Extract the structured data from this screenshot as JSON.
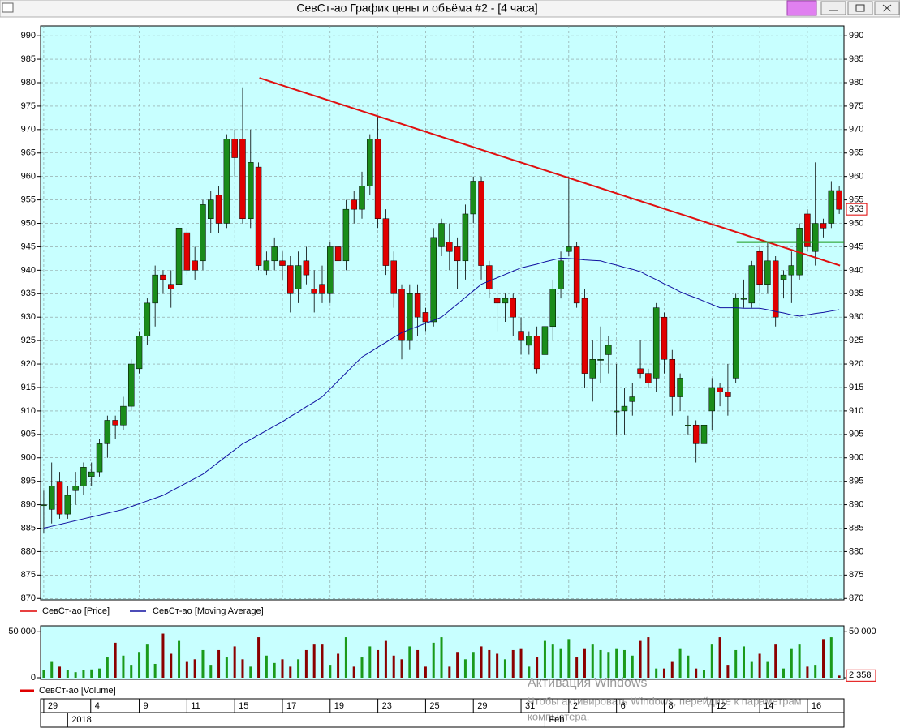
{
  "window": {
    "title": "СевСт-ао График цены и объёма #2 - [4 часа]"
  },
  "watermark": {
    "title": "Активация Windows",
    "lines": [
      "Чтобы активировать Windows, перейдите к параметрам",
      "компьютера."
    ]
  },
  "chart_data": [
    {
      "type": "candlestick",
      "series": [
        {
          "name": "СевСт-ао [Price]",
          "color": "#e00000",
          "up_color": "#1a8c1a",
          "down_color": "#e00000",
          "open": [
            890,
            889,
            895,
            888,
            893,
            894,
            896,
            897,
            903,
            908,
            907,
            911,
            919,
            926,
            933,
            939,
            937,
            937,
            948,
            942,
            942,
            951,
            956,
            950,
            968,
            968,
            951,
            962,
            940,
            942,
            942,
            941,
            936,
            942,
            936,
            937,
            935,
            945,
            942,
            955,
            953,
            958,
            968,
            951,
            942,
            936,
            925,
            935,
            931,
            929,
            945,
            946,
            945,
            942,
            952,
            959,
            941,
            934,
            933,
            934,
            927,
            924,
            926,
            922,
            928,
            936,
            944,
            945,
            934,
            917,
            921,
            922,
            910,
            910,
            912,
            919,
            918,
            917,
            930,
            921,
            913,
            907,
            907,
            903,
            910,
            915,
            914,
            917,
            934,
            933,
            944,
            937,
            942,
            938,
            939,
            939,
            952,
            944,
            950,
            950,
            957
          ],
          "high": [
            893,
            899,
            897,
            894,
            897,
            899,
            899,
            904,
            909,
            909,
            913,
            921,
            927,
            934,
            941,
            940,
            940,
            950,
            949,
            945,
            955,
            957,
            958,
            969,
            970,
            979,
            970,
            963,
            944,
            947,
            944,
            943,
            944,
            945,
            940,
            941,
            946,
            950,
            955,
            957,
            961,
            969,
            973,
            953,
            944,
            937,
            937,
            937,
            932,
            949,
            951,
            950,
            947,
            954,
            960,
            960,
            942,
            936,
            935,
            935,
            930,
            927,
            928,
            931,
            938,
            944,
            960,
            946,
            936,
            925,
            928,
            926,
            920,
            915,
            916,
            925,
            919,
            933,
            931,
            923,
            918,
            909,
            908,
            910,
            917,
            916,
            920,
            935,
            938,
            942,
            945,
            946,
            943,
            940,
            944,
            950,
            953,
            963,
            951,
            959,
            958
          ],
          "low": [
            884,
            886,
            887,
            887,
            890,
            892,
            894,
            896,
            900,
            904,
            906,
            910,
            918,
            924,
            928,
            935,
            932,
            936,
            939,
            938,
            940,
            948,
            948,
            949,
            960,
            950,
            949,
            940,
            939,
            940,
            938,
            931,
            933,
            937,
            931,
            933,
            933,
            940,
            940,
            950,
            951,
            956,
            949,
            939,
            932,
            921,
            923,
            926,
            927,
            928,
            943,
            940,
            936,
            938,
            950,
            938,
            934,
            927,
            929,
            926,
            922,
            922,
            918,
            917,
            925,
            934,
            943,
            932,
            915,
            912,
            916,
            918,
            905,
            905,
            909,
            917,
            915,
            914,
            918,
            909,
            910,
            905,
            899,
            902,
            906,
            911,
            909,
            916,
            932,
            932,
            935,
            935,
            928,
            934,
            933,
            938,
            944,
            941,
            947,
            949,
            952
          ],
          "close": [
            890,
            894,
            888,
            892,
            894,
            898,
            897,
            903,
            908,
            907,
            911,
            920,
            926,
            933,
            939,
            938,
            936,
            949,
            940,
            940,
            954,
            955,
            950,
            968,
            964,
            951,
            963,
            941,
            942,
            945,
            941,
            935,
            941,
            939,
            935,
            935,
            945,
            942,
            953,
            953,
            958,
            968,
            951,
            941,
            935,
            925,
            935,
            930,
            929,
            947,
            950,
            944,
            942,
            952,
            959,
            941,
            936,
            933,
            934,
            930,
            925,
            926,
            919,
            928,
            936,
            942,
            945,
            933,
            918,
            921,
            921,
            924,
            910,
            911,
            913,
            918,
            916,
            932,
            921,
            913,
            917,
            907,
            903,
            907,
            915,
            914,
            913,
            934,
            934,
            941,
            937,
            942,
            930,
            939,
            941,
            949,
            945,
            950,
            949,
            957,
            953
          ]
        },
        {
          "name": "СевСт-ао [Moving Average]",
          "color": "#1010a0",
          "values": [
            885,
            885.4,
            885.8,
            886.2,
            886.6,
            887,
            887.4,
            887.8,
            888.2,
            888.6,
            889,
            889.6,
            890.2,
            890.8,
            891.4,
            892,
            892.9,
            893.8,
            894.7,
            895.6,
            896.5,
            897.8,
            899.1,
            900.4,
            901.7,
            903,
            903.9,
            904.9,
            905.8,
            906.8,
            907.7,
            908.8,
            909.8,
            910.9,
            911.9,
            913,
            914.7,
            916.4,
            918.1,
            919.8,
            921.5,
            922.5,
            923.6,
            924.6,
            925.7,
            926.7,
            927.4,
            928,
            928.7,
            929.3,
            930,
            931.4,
            932.8,
            934.2,
            935.6,
            937,
            937.7,
            938.4,
            939.1,
            939.8,
            940.5,
            940.9,
            941.3,
            941.8,
            942.2,
            942.6,
            942.5,
            942.4,
            942.2,
            942.1,
            942,
            941.5,
            941.1,
            940.6,
            940.2,
            939.7,
            938.8,
            938,
            937.1,
            936.3,
            935.4,
            934.7,
            934.1,
            933.4,
            932.7,
            932,
            932,
            932,
            931.9,
            931.9,
            931.9,
            931.6,
            931.2,
            930.9,
            930.5,
            930.2,
            930.5,
            930.8,
            931,
            931.3,
            931.6
          ]
        }
      ],
      "annotations": [
        {
          "type": "trendline",
          "color": "#e01010",
          "x": [
            27.1,
            100.1
          ],
          "y": [
            981,
            941
          ]
        },
        {
          "type": "hline",
          "color": "#1a9a1a",
          "x": [
            87.1,
            100.6
          ],
          "y": [
            946,
            946
          ]
        }
      ],
      "xlim": [
        -0.4,
        100.6
      ],
      "ylim": [
        869.7,
        992.1
      ],
      "yticks": [
        870,
        875,
        880,
        885,
        890,
        895,
        900,
        905,
        910,
        915,
        920,
        925,
        930,
        935,
        940,
        945,
        950,
        955,
        960,
        965,
        970,
        975,
        980,
        985,
        990
      ],
      "xticks": [
        {
          "value": 0,
          "label": "29"
        },
        {
          "value": 5.9,
          "label": "4"
        },
        {
          "value": 12,
          "label": "9"
        },
        {
          "value": 18,
          "label": "11"
        },
        {
          "value": 24,
          "label": "15"
        },
        {
          "value": 30,
          "label": "17"
        },
        {
          "value": 36,
          "label": "19"
        },
        {
          "value": 42,
          "label": "23"
        },
        {
          "value": 48,
          "label": "25"
        },
        {
          "value": 54,
          "label": "29"
        },
        {
          "value": 60,
          "label": "31"
        },
        {
          "value": 66,
          "label": "2"
        },
        {
          "value": 72,
          "label": "6"
        },
        {
          "value": 78,
          "label": "8"
        },
        {
          "value": 84,
          "label": "12"
        },
        {
          "value": 90,
          "label": "14"
        },
        {
          "value": 96,
          "label": "16"
        }
      ],
      "month_ticks": [
        {
          "value": 3,
          "label": "2018"
        },
        {
          "value": 63,
          "label": "Feb"
        }
      ],
      "grid": true,
      "background": "#c8ffff"
    },
    {
      "type": "bar",
      "series": [
        {
          "name": "СевСт-ао [Volume]",
          "color": "#e00000",
          "up_color": "#1a9a1a",
          "down_color": "#8b0000",
          "values": [
            8000,
            18000,
            12000,
            8000,
            6000,
            8000,
            9000,
            10000,
            22000,
            38000,
            24000,
            14000,
            28000,
            36000,
            15000,
            48000,
            26000,
            40000,
            18000,
            20000,
            30000,
            14000,
            30000,
            22000,
            34000,
            20000,
            12000,
            44000,
            24000,
            16000,
            20000,
            12000,
            20000,
            30000,
            36000,
            36000,
            14000,
            26000,
            44000,
            12000,
            22000,
            34000,
            30000,
            40000,
            24000,
            20000,
            34000,
            30000,
            12000,
            38000,
            44000,
            12000,
            28000,
            20000,
            28000,
            34000,
            30000,
            26000,
            20000,
            30000,
            32000,
            12000,
            22000,
            40000,
            36000,
            32000,
            42000,
            22000,
            32000,
            36000,
            30000,
            28000,
            32000,
            30000,
            24000,
            40000,
            44000,
            10000,
            10000,
            18000,
            32000,
            24000,
            10000,
            8000,
            36000,
            44000,
            14000,
            30000,
            34000,
            18000,
            26000,
            18000,
            36000,
            10000,
            32000,
            36000,
            12000,
            14000,
            42000,
            44000,
            2358
          ],
          "value_labels": [
            null,
            null,
            null,
            null,
            null,
            null,
            null,
            null,
            null,
            null,
            null,
            null,
            null,
            null,
            null,
            null,
            null,
            null,
            null,
            null,
            null,
            null,
            null,
            null,
            null,
            null,
            null,
            null,
            null,
            null,
            null,
            null,
            null,
            null,
            null,
            null,
            null,
            null,
            null,
            null,
            null,
            null,
            null,
            null,
            null,
            null,
            null,
            null,
            null,
            null,
            null,
            null,
            null,
            null,
            null,
            null,
            null,
            null,
            null,
            null,
            null,
            null,
            null,
            null,
            null,
            null,
            null,
            null,
            null,
            null,
            null,
            null,
            null,
            null,
            null,
            null,
            null,
            null,
            null,
            null,
            null,
            null,
            null,
            null,
            null,
            null,
            null,
            null,
            null,
            null,
            null,
            null,
            null,
            null,
            null,
            null,
            null,
            null,
            null,
            null,
            "2 358"
          ]
        }
      ],
      "xlim": [
        -0.4,
        100.6
      ],
      "ylim": [
        0,
        56400
      ],
      "yticks": [
        0,
        {
          "value": 50000,
          "label": "50 000"
        }
      ],
      "background": "#c8ffff"
    }
  ]
}
